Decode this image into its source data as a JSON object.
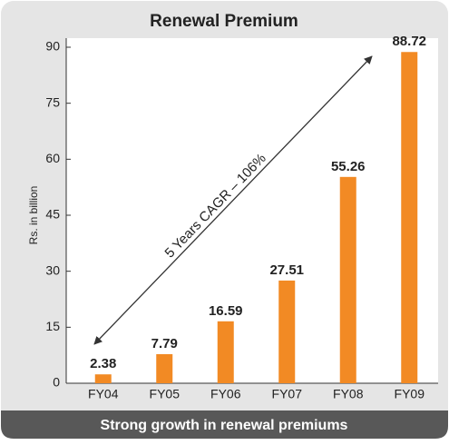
{
  "chart_data": {
    "type": "bar",
    "title": "Renewal Premium",
    "y_label": "Rs. in billion",
    "categories": [
      "FY04",
      "FY05",
      "FY06",
      "FY07",
      "FY08",
      "FY09"
    ],
    "values": [
      2.38,
      7.79,
      16.59,
      27.51,
      55.26,
      88.72
    ],
    "color": "#f28a24",
    "ylim": [
      0,
      90
    ],
    "yticks": [
      0,
      15,
      30,
      45,
      60,
      75,
      90
    ],
    "annotation": "5 Years CAGR – 106%",
    "caption": "Strong growth in renewal premiums"
  }
}
